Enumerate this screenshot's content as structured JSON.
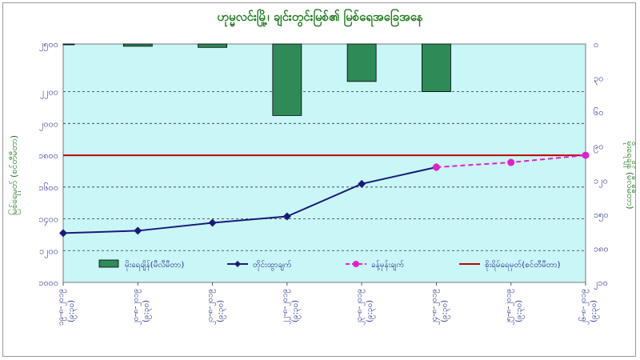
{
  "chart_data": {
    "type": "bar+line",
    "title": "ဟုမ္မလင်းမြို့၊ ချင်းတွင်းမြစ်၏ မြစ်ရေအခြေအနေ",
    "ylabel_left": "မြစ်ရေမှတ် (စင်တီမီတာ)",
    "ylabel_right": "မိုးရေချိန် (မီလီမီတာ)",
    "categories": [
      "၁၉-၈-၂၀၁၉ (၉:၃၀)",
      "၂၀-၈-၂၀၁၉ (၉:၃၀)",
      "၂၁-၈-၂၀၁၉ (၉:၃၀)",
      "၂၂-၈-၂၀၁၉ (၉:၃၀)",
      "၂၃-၈-၂၀၁၉ (၉:၃၀)",
      "၂၄-၈-၂၀၁၉ (၉:၃၀)",
      "၂၅-၈-၂၀၁၉ (၉:၃၀)",
      "၂၆-၈-၂၀၁၉ (၉:၃၀)"
    ],
    "ylim_left": [
      1000,
      2500
    ],
    "yticks_left": [
      {
        "value": 1000,
        "label": "၁၀၀၀"
      },
      {
        "value": 1200,
        "label": "၁၂၀၀"
      },
      {
        "value": 1400,
        "label": "၁၄၀၀"
      },
      {
        "value": 1600,
        "label": "၁၆၀၀"
      },
      {
        "value": 1800,
        "label": "၁၈၀၀"
      },
      {
        "value": 2000,
        "label": "၂၀၀၀"
      },
      {
        "value": 2200,
        "label": "၂၂၀၀"
      },
      {
        "value": 2500,
        "label": "၂၅၀၀"
      }
    ],
    "ylim_right": [
      0,
      210
    ],
    "yticks_right": [
      {
        "value": 0,
        "label": "၀"
      },
      {
        "value": 30,
        "label": "၃၀"
      },
      {
        "value": 60,
        "label": "၆၀"
      },
      {
        "value": 90,
        "label": "၉၀"
      },
      {
        "value": 120,
        "label": "၁၂၀"
      },
      {
        "value": 150,
        "label": "၁၅၀"
      },
      {
        "value": 180,
        "label": "၁၈၀"
      },
      {
        "value": 210,
        "label": "၂၁၀"
      }
    ],
    "series": [
      {
        "name": "မိုးရေချိန်(မီလီမီတာ)",
        "type": "bar",
        "axis": "right",
        "color": "#2e8b57",
        "values": [
          0.5,
          2,
          3,
          63,
          33,
          42,
          null,
          null
        ]
      },
      {
        "name": "တိုင်းထွာချက်",
        "type": "line",
        "axis": "left",
        "color": "#1a1a7a",
        "values": [
          1310,
          1325,
          1375,
          1415,
          1620,
          1725,
          null,
          null
        ]
      },
      {
        "name": "ခန့်မှန်းချက်",
        "type": "line-dashed",
        "axis": "left",
        "color": "#e020d0",
        "values": [
          null,
          null,
          null,
          null,
          null,
          1725,
          1755,
          1800
        ]
      },
      {
        "name": "စိုးရိမ်ရေမှတ်(စင်တီမီတာ)",
        "type": "hline",
        "axis": "left",
        "color": "#c00000",
        "value": 1800
      }
    ],
    "grid": true,
    "legend": "bottom-inside"
  }
}
